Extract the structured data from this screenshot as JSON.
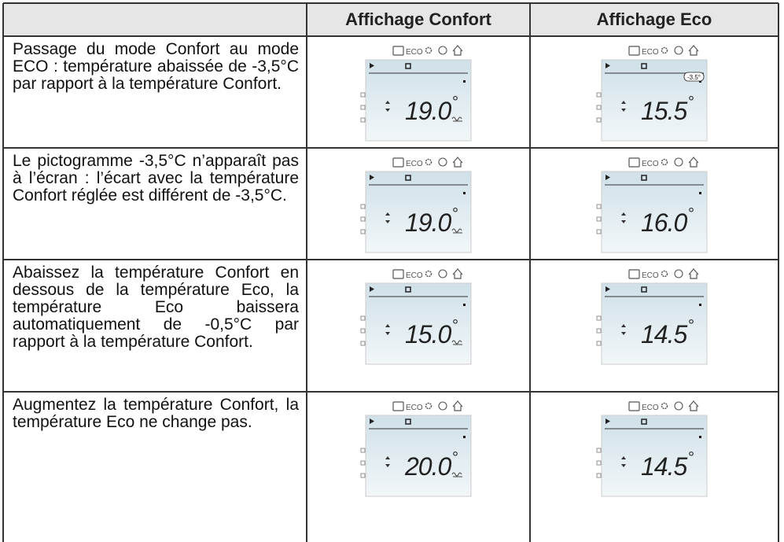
{
  "table": {
    "columns": [
      "Affichage Confort",
      "Affichage Eco"
    ],
    "display_label": "ECO",
    "degree": "°",
    "rows": [
      {
        "text": "Passage du mode Confort au mode ECO : température abaissée de -3,5°C par rapport à la température Confort.",
        "confort": {
          "temp": "19.0",
          "heat": true
        },
        "eco": {
          "temp": "15.5",
          "heat": false,
          "badge": "-3.5°"
        }
      },
      {
        "text": "Le pictogramme -3,5°C n’apparaît pas à l’écran : l’écart avec la température Confort réglée est différent de -3,5°C.",
        "confort": {
          "temp": "19.0",
          "heat": true
        },
        "eco": {
          "temp": "16.0",
          "heat": false
        }
      },
      {
        "text": "Abaissez la température Confort en dessous de la température Eco, la température Eco baissera automatiquement de -0,5°C par rapport à la température Confort.",
        "confort": {
          "temp": "15.0",
          "heat": true
        },
        "eco": {
          "temp": "14.5",
          "heat": false
        }
      },
      {
        "text": "Augmentez la température Confort, la température Eco ne change pas.",
        "confort": {
          "temp": "20.0",
          "heat": true
        },
        "eco": {
          "temp": "14.5",
          "heat": false
        }
      }
    ]
  }
}
